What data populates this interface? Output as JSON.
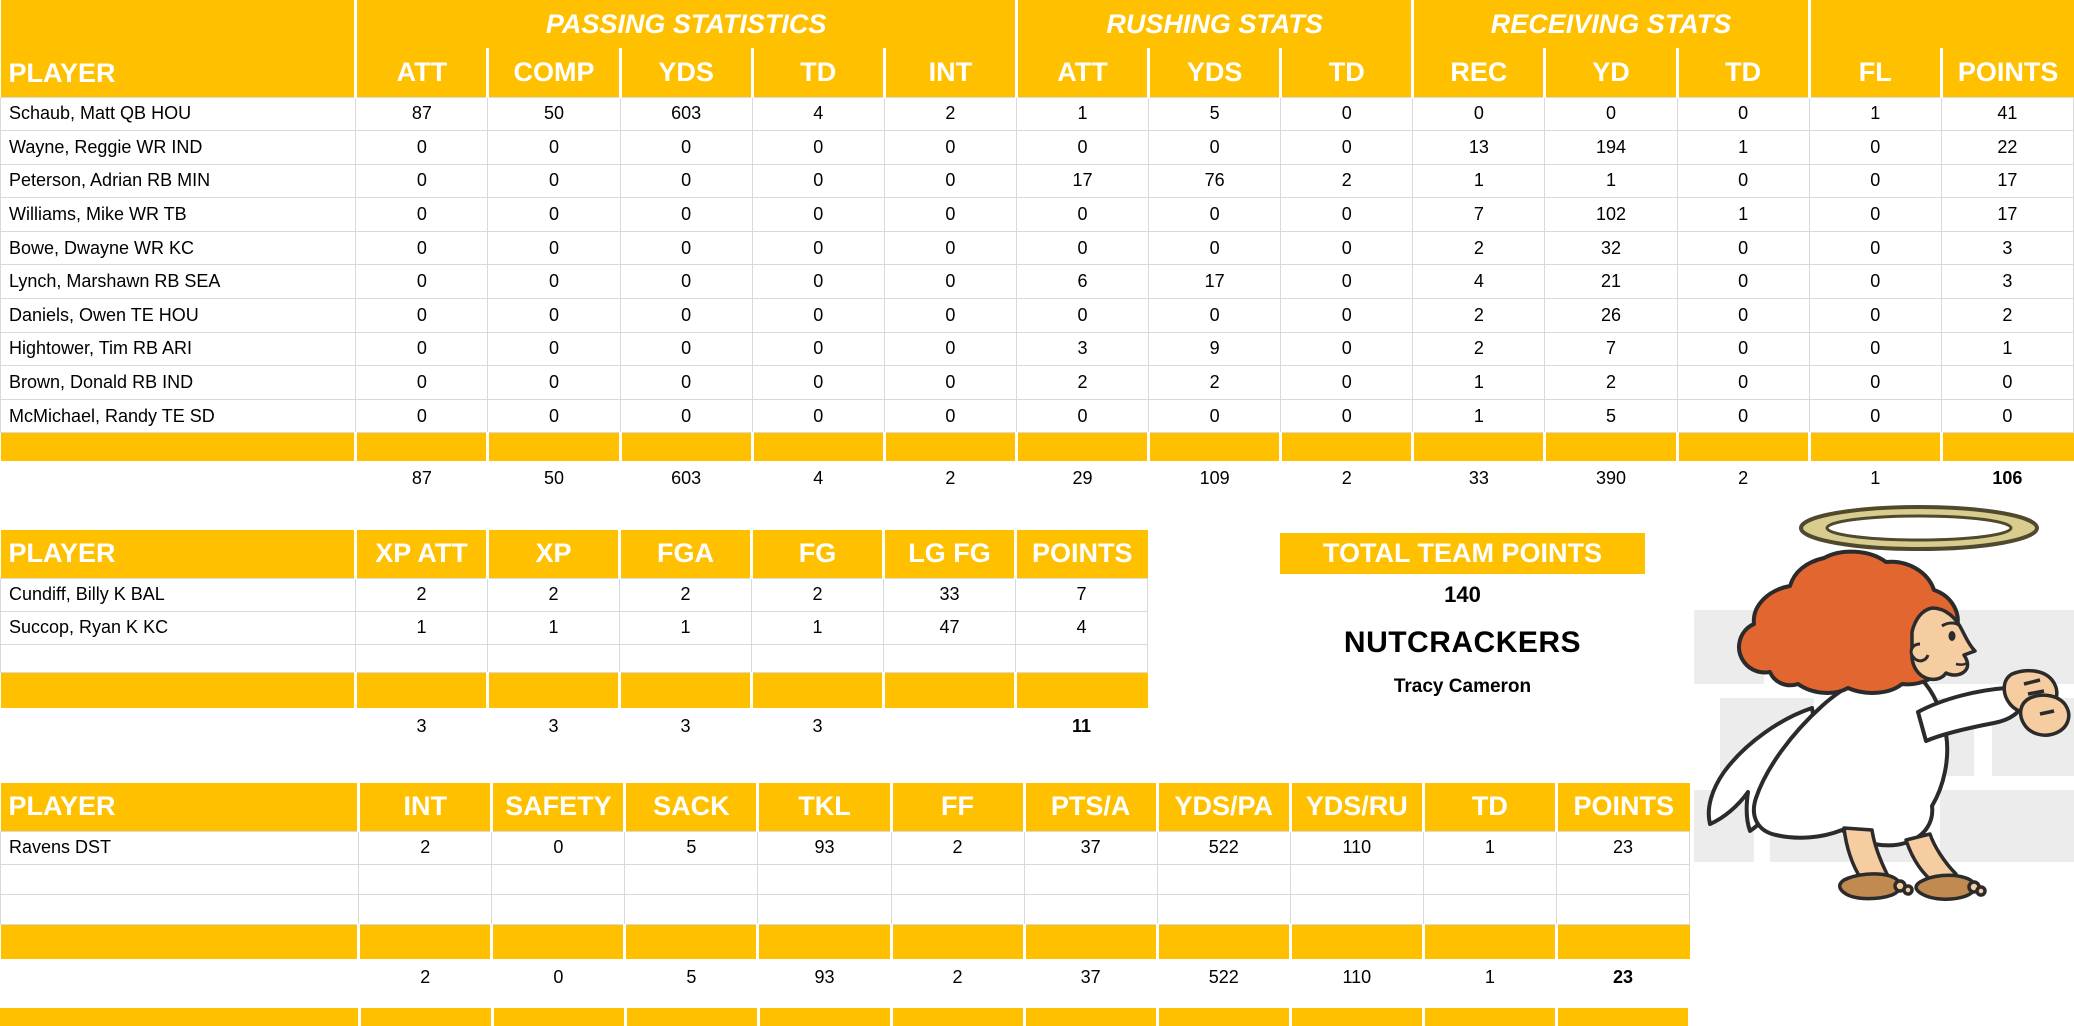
{
  "colors": {
    "accent": "#FFC000",
    "gridline": "#D9D9D9"
  },
  "tables": {
    "offense": {
      "groups": [
        {
          "label": "PASSING STATISTICS",
          "span": 5
        },
        {
          "label": "RUSHING STATS",
          "span": 3
        },
        {
          "label": "RECEIVING STATS",
          "span": 3
        },
        {
          "label": "",
          "span": 2
        }
      ],
      "columns": [
        "PLAYER",
        "ATT",
        "COMP",
        "YDS",
        "TD",
        "INT",
        "ATT",
        "YDS",
        "TD",
        "REC",
        "YD",
        "TD",
        "FL",
        "POINTS"
      ],
      "rows": [
        [
          "Schaub, Matt QB HOU",
          87,
          50,
          603,
          4,
          2,
          1,
          5,
          0,
          0,
          0,
          0,
          1,
          41
        ],
        [
          "Wayne, Reggie WR IND",
          0,
          0,
          0,
          0,
          0,
          0,
          0,
          0,
          13,
          194,
          1,
          0,
          22
        ],
        [
          "Peterson, Adrian RB MIN",
          0,
          0,
          0,
          0,
          0,
          17,
          76,
          2,
          1,
          1,
          0,
          0,
          17
        ],
        [
          "Williams, Mike WR TB",
          0,
          0,
          0,
          0,
          0,
          0,
          0,
          0,
          7,
          102,
          1,
          0,
          17
        ],
        [
          "Bowe, Dwayne WR KC",
          0,
          0,
          0,
          0,
          0,
          0,
          0,
          0,
          2,
          32,
          0,
          0,
          3
        ],
        [
          "Lynch, Marshawn RB SEA",
          0,
          0,
          0,
          0,
          0,
          6,
          17,
          0,
          4,
          21,
          0,
          0,
          3
        ],
        [
          "Daniels, Owen TE HOU",
          0,
          0,
          0,
          0,
          0,
          0,
          0,
          0,
          2,
          26,
          0,
          0,
          2
        ],
        [
          "Hightower, Tim RB ARI",
          0,
          0,
          0,
          0,
          0,
          3,
          9,
          0,
          2,
          7,
          0,
          0,
          1
        ],
        [
          "Brown, Donald RB IND",
          0,
          0,
          0,
          0,
          0,
          2,
          2,
          0,
          1,
          2,
          0,
          0,
          0
        ],
        [
          "McMichael, Randy TE SD",
          0,
          0,
          0,
          0,
          0,
          0,
          0,
          0,
          1,
          5,
          0,
          0,
          0
        ]
      ],
      "totals": [
        "",
        87,
        50,
        603,
        4,
        2,
        29,
        109,
        2,
        33,
        390,
        2,
        1,
        106
      ]
    },
    "kicking": {
      "columns": [
        "PLAYER",
        "XP ATT",
        "XP",
        "FGA",
        "FG",
        "LG FG",
        "POINTS"
      ],
      "rows": [
        [
          "Cundiff, Billy K BAL",
          2,
          2,
          2,
          2,
          33,
          7
        ],
        [
          "Succop, Ryan K KC",
          1,
          1,
          1,
          1,
          47,
          4
        ],
        [
          "",
          "",
          "",
          "",
          "",
          "",
          ""
        ]
      ],
      "totals": [
        "",
        3,
        3,
        3,
        3,
        "",
        11
      ]
    },
    "defense": {
      "columns": [
        "PLAYER",
        "INT",
        "SAFETY",
        "SACK",
        "TKL",
        "FF",
        "PTS/A",
        "YDS/PA",
        "YDS/RU",
        "TD",
        "POINTS"
      ],
      "rows": [
        [
          "Ravens DST",
          2,
          0,
          5,
          93,
          2,
          37,
          522,
          110,
          1,
          23
        ],
        [
          "",
          "",
          "",
          "",
          "",
          "",
          "",
          "",
          "",
          "",
          ""
        ],
        [
          "",
          "",
          "",
          "",
          "",
          "",
          "",
          "",
          "",
          "",
          ""
        ]
      ],
      "totals": [
        "",
        2,
        0,
        5,
        93,
        2,
        37,
        522,
        110,
        1,
        23
      ]
    }
  },
  "summary": {
    "title": "TOTAL TEAM POINTS",
    "points": "140",
    "team_name": "NUTCRACKERS",
    "owner": "Tracy Cameron"
  },
  "mascot": {
    "name": "angel-mascot"
  }
}
